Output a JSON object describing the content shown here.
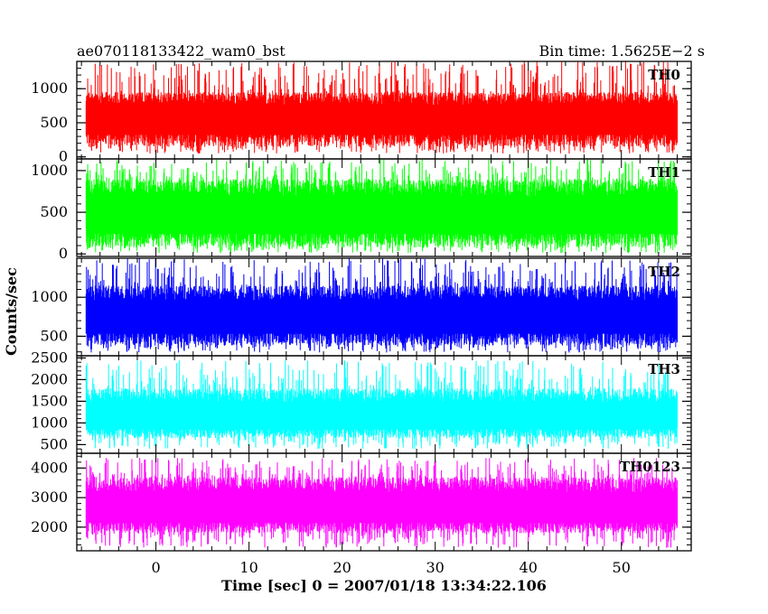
{
  "header": {
    "title": "ae070118133422_wam0_bst",
    "bin_time": "Bin time: 1.5625E−2 s"
  },
  "chart_data": {
    "type": "line",
    "xlabel": "Time [sec] 0 = 2007/01/18 13:34:22.106",
    "ylabel": "Counts/sec",
    "xlim": [
      -8.5,
      57.5
    ],
    "x_ticks": [
      0,
      10,
      20,
      30,
      40,
      50
    ],
    "x_data_range": [
      -7.5,
      56
    ],
    "grid": false,
    "panels": [
      {
        "name": "TH0",
        "color": "#ff0000",
        "ylim": [
          -30,
          1400
        ],
        "y_ticks": [
          0,
          500,
          1000
        ],
        "signal": {
          "base_min": 150,
          "base_max": 950,
          "low_min": 50,
          "spike_max": 1400,
          "mean": 580
        }
      },
      {
        "name": "TH1",
        "color": "#00ff00",
        "ylim": [
          -30,
          1140
        ],
        "y_ticks": [
          0,
          500,
          1000
        ],
        "signal": {
          "base_min": 80,
          "base_max": 900,
          "low_min": 10,
          "spike_max": 1140,
          "mean": 480
        }
      },
      {
        "name": "TH2",
        "color": "#0000ff",
        "ylim": [
          250,
          1500
        ],
        "y_ticks": [
          500,
          1000
        ],
        "signal": {
          "base_min": 380,
          "base_max": 1150,
          "low_min": 290,
          "spike_max": 1500,
          "mean": 760
        }
      },
      {
        "name": "TH3",
        "color": "#00ffff",
        "ylim": [
          300,
          2550
        ],
        "y_ticks": [
          500,
          1000,
          1500,
          2000,
          2500
        ],
        "signal": {
          "base_min": 650,
          "base_max": 1800,
          "low_min": 400,
          "spike_max": 2450,
          "mean": 1150
        }
      },
      {
        "name": "TH0123",
        "color": "#ff00ff",
        "ylim": [
          1200,
          4500
        ],
        "y_ticks": [
          2000,
          3000,
          4000
        ],
        "signal": {
          "base_min": 1800,
          "base_max": 3700,
          "low_min": 1300,
          "spike_max": 4350,
          "mean": 2650
        }
      }
    ]
  }
}
